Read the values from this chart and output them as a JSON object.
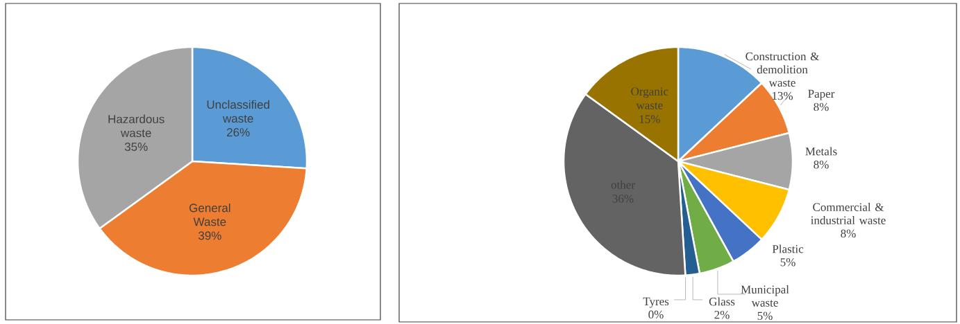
{
  "chart_data": [
    {
      "type": "pie",
      "categories": [
        "Unclassified waste",
        "General Waste",
        "Hazardous waste"
      ],
      "values": [
        26,
        39,
        35
      ],
      "colors": [
        "#5b9bd5",
        "#ed7d31",
        "#a5a5a5"
      ],
      "value_labels": [
        "26%",
        "39%",
        "35%"
      ]
    },
    {
      "type": "pie",
      "categories": [
        "Construction & demolition waste",
        "Paper",
        "Metals",
        "Commercial & industrial waste",
        "Plastic",
        "Municipal waste",
        "Glass",
        "Tyres",
        "other",
        "Organic waste"
      ],
      "values": [
        13,
        8,
        8,
        8,
        5,
        5,
        2,
        0,
        36,
        15
      ],
      "colors": [
        "#5b9bd5",
        "#ed7d31",
        "#a5a5a5",
        "#ffc000",
        "#4472c4",
        "#70ad47",
        "#255e91",
        "#9e480e",
        "#636363",
        "#997300"
      ],
      "value_labels": [
        "13%",
        "8%",
        "8%",
        "8%",
        "5%",
        "5%",
        "2%",
        "0%",
        "36%",
        "15%"
      ]
    }
  ]
}
